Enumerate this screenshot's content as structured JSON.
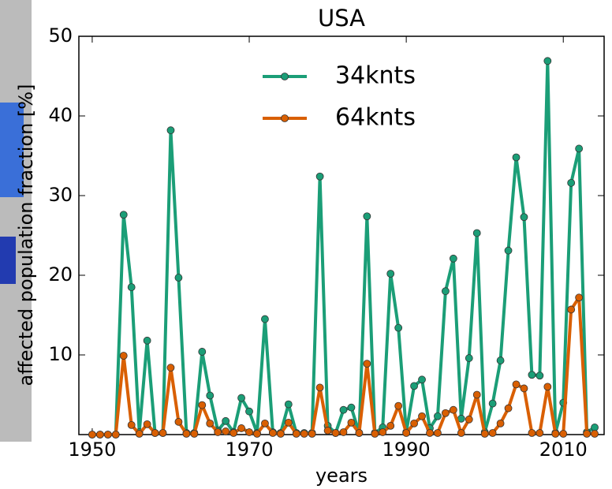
{
  "chart_data": {
    "type": "line",
    "title": "USA",
    "x_label": "years",
    "y_label": "affected population fraction [%]",
    "x": [
      1950,
      1951,
      1952,
      1953,
      1954,
      1955,
      1956,
      1957,
      1958,
      1959,
      1960,
      1961,
      1962,
      1963,
      1964,
      1965,
      1966,
      1967,
      1968,
      1969,
      1970,
      1971,
      1972,
      1973,
      1974,
      1975,
      1976,
      1977,
      1978,
      1979,
      1980,
      1981,
      1982,
      1983,
      1984,
      1985,
      1986,
      1987,
      1988,
      1989,
      1990,
      1991,
      1992,
      1993,
      1994,
      1995,
      1996,
      1997,
      1998,
      1999,
      2000,
      2001,
      2002,
      2003,
      2004,
      2005,
      2006,
      2007,
      2008,
      2009,
      2010,
      2011,
      2012,
      2013,
      2014
    ],
    "series": [
      {
        "name": "34knts",
        "color": "#1b9e77",
        "values": [
          0,
          0,
          0,
          0,
          27.6,
          18.5,
          0.3,
          11.8,
          0.2,
          0.2,
          38.2,
          19.7,
          0.2,
          0.2,
          10.4,
          4.9,
          0.5,
          1.7,
          0.3,
          4.6,
          2.9,
          0.2,
          14.5,
          0.3,
          0.2,
          3.8,
          0.2,
          0.2,
          0.2,
          32.4,
          1.1,
          0.2,
          3.1,
          3.4,
          0.2,
          27.4,
          0.2,
          0.9,
          20.2,
          13.4,
          0.3,
          6.1,
          6.9,
          0.8,
          2.3,
          18.0,
          22.1,
          2.0,
          9.6,
          25.3,
          0.3,
          3.9,
          9.3,
          23.1,
          34.8,
          27.3,
          7.5,
          7.4,
          46.9,
          0.2,
          4.0,
          31.6,
          35.9,
          0.3,
          0.9
        ]
      },
      {
        "name": "64knts",
        "color": "#d95f02",
        "values": [
          0,
          0,
          0,
          0,
          9.9,
          1.2,
          0.1,
          1.3,
          0.2,
          0.2,
          8.4,
          1.6,
          0.1,
          0.1,
          3.7,
          1.4,
          0.3,
          0.4,
          0.2,
          0.8,
          0.3,
          0.1,
          1.4,
          0.2,
          0.1,
          1.5,
          0.1,
          0.1,
          0.1,
          5.9,
          0.5,
          0.2,
          0.3,
          1.5,
          0.2,
          8.9,
          0.1,
          0.3,
          1.1,
          3.6,
          0.2,
          1.4,
          2.3,
          0.2,
          0.2,
          2.7,
          3.1,
          0.2,
          1.9,
          5.0,
          0.1,
          0.2,
          1.4,
          3.3,
          6.3,
          5.8,
          0.2,
          0.2,
          6.0,
          0.1,
          0.1,
          15.7,
          17.2,
          0.1,
          0.1
        ]
      }
    ],
    "xlim": [
      1948.3,
      2015.2
    ],
    "xticks": [
      1950,
      1970,
      1990,
      2010
    ],
    "ylim": [
      0,
      50
    ],
    "yticks": [
      10,
      20,
      30,
      40,
      50
    ],
    "legend": "upper center"
  }
}
